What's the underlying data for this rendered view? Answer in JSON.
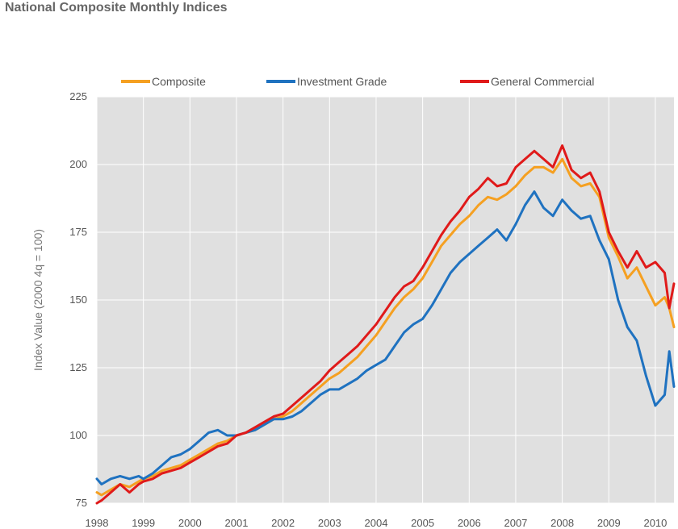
{
  "title": "National Composite Monthly Indices",
  "chart_data": {
    "type": "line",
    "title": "National Composite Monthly Indices",
    "xlabel": "",
    "ylabel": "Index Value (2000 4q = 100)",
    "xlim": [
      1998.0,
      2010.4
    ],
    "ylim": [
      75,
      225
    ],
    "yticks": [
      75,
      100,
      125,
      150,
      175,
      200,
      225
    ],
    "xticks": [
      "1998",
      "1999",
      "2000",
      "2001",
      "2002",
      "2003",
      "2004",
      "2005",
      "2006",
      "2007",
      "2008",
      "2009",
      "2010"
    ],
    "grid": true,
    "legend_position": "top",
    "colors": {
      "plot_background": "#e0e0e0",
      "grid": "#ffffff"
    },
    "series": [
      {
        "name": "Composite",
        "color": "#f5a021",
        "x": [
          1998.0,
          1998.1,
          1998.3,
          1998.5,
          1998.7,
          1998.9,
          1999.0,
          1999.2,
          1999.4,
          1999.6,
          1999.8,
          2000.0,
          2000.2,
          2000.4,
          2000.6,
          2000.8,
          2001.0,
          2001.2,
          2001.4,
          2001.6,
          2001.8,
          2002.0,
          2002.2,
          2002.4,
          2002.6,
          2002.8,
          2003.0,
          2003.2,
          2003.4,
          2003.6,
          2003.8,
          2004.0,
          2004.2,
          2004.4,
          2004.6,
          2004.8,
          2005.0,
          2005.2,
          2005.4,
          2005.6,
          2005.8,
          2006.0,
          2006.2,
          2006.4,
          2006.6,
          2006.8,
          2007.0,
          2007.2,
          2007.4,
          2007.6,
          2007.8,
          2008.0,
          2008.2,
          2008.4,
          2008.6,
          2008.8,
          2009.0,
          2009.2,
          2009.4,
          2009.6,
          2009.8,
          2010.0,
          2010.2,
          2010.3,
          2010.4
        ],
        "y": [
          79,
          78,
          80,
          82,
          81,
          83,
          84,
          85,
          87,
          88,
          89,
          91,
          93,
          95,
          97,
          98,
          100,
          101,
          102,
          104,
          106,
          107,
          109,
          112,
          115,
          118,
          121,
          123,
          126,
          129,
          133,
          137,
          142,
          147,
          151,
          154,
          158,
          164,
          170,
          174,
          178,
          181,
          185,
          188,
          187,
          189,
          192,
          196,
          199,
          199,
          197,
          202,
          195,
          192,
          193,
          188,
          173,
          166,
          158,
          162,
          155,
          148,
          151,
          147,
          140
        ]
      },
      {
        "name": "Investment Grade",
        "color": "#1f72c0",
        "x": [
          1998.0,
          1998.1,
          1998.3,
          1998.5,
          1998.7,
          1998.9,
          1999.0,
          1999.2,
          1999.4,
          1999.6,
          1999.8,
          2000.0,
          2000.2,
          2000.4,
          2000.6,
          2000.8,
          2001.0,
          2001.2,
          2001.4,
          2001.6,
          2001.8,
          2002.0,
          2002.2,
          2002.4,
          2002.6,
          2002.8,
          2003.0,
          2003.2,
          2003.4,
          2003.6,
          2003.8,
          2004.0,
          2004.2,
          2004.4,
          2004.6,
          2004.8,
          2005.0,
          2005.2,
          2005.4,
          2005.6,
          2005.8,
          2006.0,
          2006.2,
          2006.4,
          2006.6,
          2006.8,
          2007.0,
          2007.2,
          2007.4,
          2007.6,
          2007.8,
          2008.0,
          2008.2,
          2008.4,
          2008.6,
          2008.8,
          2009.0,
          2009.2,
          2009.4,
          2009.6,
          2009.8,
          2010.0,
          2010.2,
          2010.3,
          2010.4
        ],
        "y": [
          84,
          82,
          84,
          85,
          84,
          85,
          84,
          86,
          89,
          92,
          93,
          95,
          98,
          101,
          102,
          100,
          100,
          101,
          102,
          104,
          106,
          106,
          107,
          109,
          112,
          115,
          117,
          117,
          119,
          121,
          124,
          126,
          128,
          133,
          138,
          141,
          143,
          148,
          154,
          160,
          164,
          167,
          170,
          173,
          176,
          172,
          178,
          185,
          190,
          184,
          181,
          187,
          183,
          180,
          181,
          172,
          165,
          150,
          140,
          135,
          122,
          111,
          115,
          131,
          118
        ]
      },
      {
        "name": "General Commercial",
        "color": "#e01a1a",
        "x": [
          1998.0,
          1998.1,
          1998.3,
          1998.5,
          1998.7,
          1998.9,
          1999.0,
          1999.2,
          1999.4,
          1999.6,
          1999.8,
          2000.0,
          2000.2,
          2000.4,
          2000.6,
          2000.8,
          2001.0,
          2001.2,
          2001.4,
          2001.6,
          2001.8,
          2002.0,
          2002.2,
          2002.4,
          2002.6,
          2002.8,
          2003.0,
          2003.2,
          2003.4,
          2003.6,
          2003.8,
          2004.0,
          2004.2,
          2004.4,
          2004.6,
          2004.8,
          2005.0,
          2005.2,
          2005.4,
          2005.6,
          2005.8,
          2006.0,
          2006.2,
          2006.4,
          2006.6,
          2006.8,
          2007.0,
          2007.2,
          2007.4,
          2007.6,
          2007.8,
          2008.0,
          2008.2,
          2008.4,
          2008.6,
          2008.8,
          2009.0,
          2009.2,
          2009.4,
          2009.6,
          2009.8,
          2010.0,
          2010.2,
          2010.3,
          2010.4
        ],
        "y": [
          75,
          76,
          79,
          82,
          79,
          82,
          83,
          84,
          86,
          87,
          88,
          90,
          92,
          94,
          96,
          97,
          100,
          101,
          103,
          105,
          107,
          108,
          111,
          114,
          117,
          120,
          124,
          127,
          130,
          133,
          137,
          141,
          146,
          151,
          155,
          157,
          162,
          168,
          174,
          179,
          183,
          188,
          191,
          195,
          192,
          193,
          199,
          202,
          205,
          202,
          199,
          207,
          198,
          195,
          197,
          190,
          175,
          168,
          162,
          168,
          162,
          164,
          160,
          147,
          156
        ]
      }
    ]
  }
}
